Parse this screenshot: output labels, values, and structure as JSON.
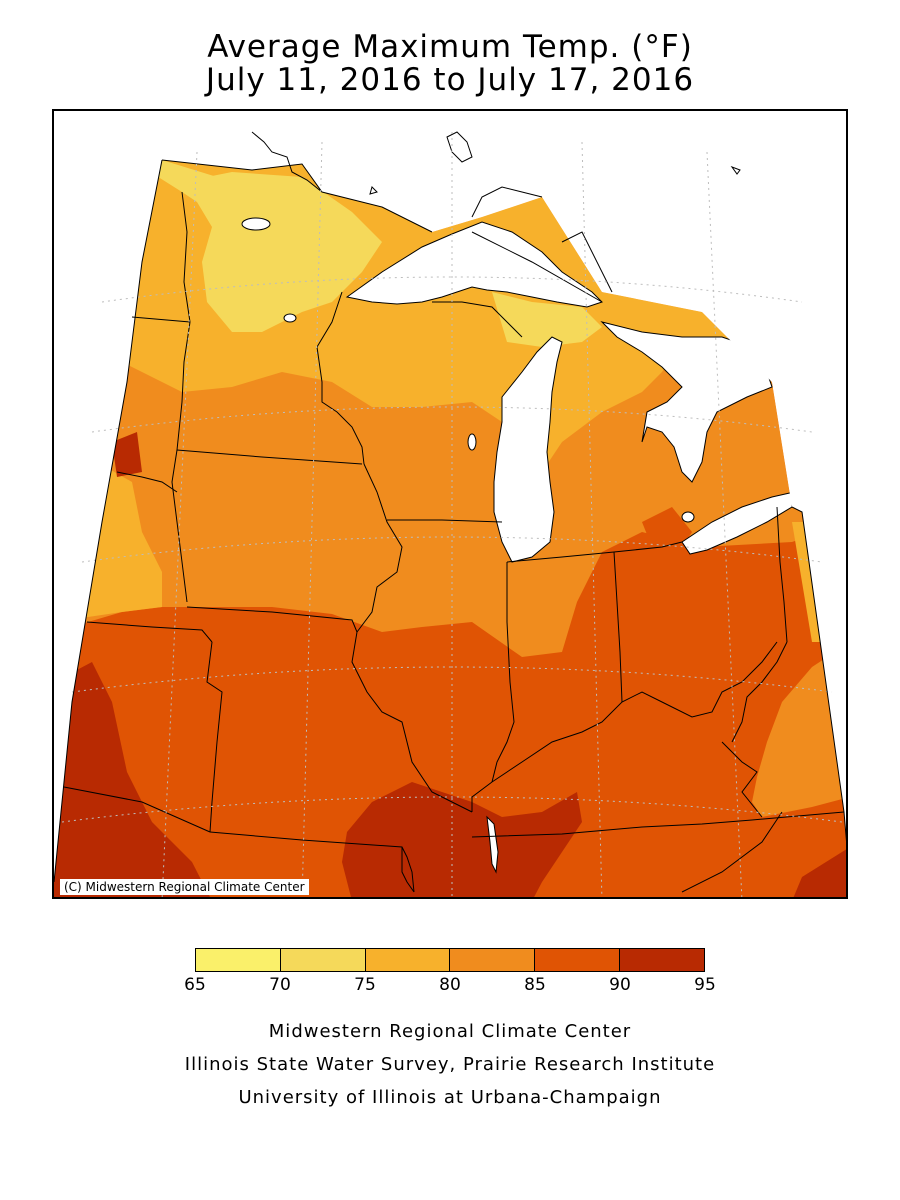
{
  "title": {
    "line1": "Average Maximum Temp. (°F)",
    "line2": "July 11, 2016 to July 17, 2016"
  },
  "map": {
    "copyright": "(C) Midwestern Regional Climate Center",
    "region": "Midwest",
    "colors": {
      "65-70": "#faf06a",
      "70-75": "#f5d95a",
      "75-80": "#f7b12c",
      "80-85": "#f08c1e",
      "85-90": "#e05404",
      "90-95": "#b82a02",
      "lakes": "#ffffff",
      "outside": "#ffffff"
    }
  },
  "legend": {
    "colors": [
      "#faf06a",
      "#f5d95a",
      "#f7b12c",
      "#f08c1e",
      "#e05404",
      "#b82a02"
    ],
    "ticks": [
      "65",
      "70",
      "75",
      "80",
      "85",
      "90",
      "95"
    ]
  },
  "credits": {
    "line1": "Midwestern Regional Climate Center",
    "line2": "Illinois State Water Survey, Prairie Research Institute",
    "line3": "University of Illinois at Urbana-Champaign"
  }
}
